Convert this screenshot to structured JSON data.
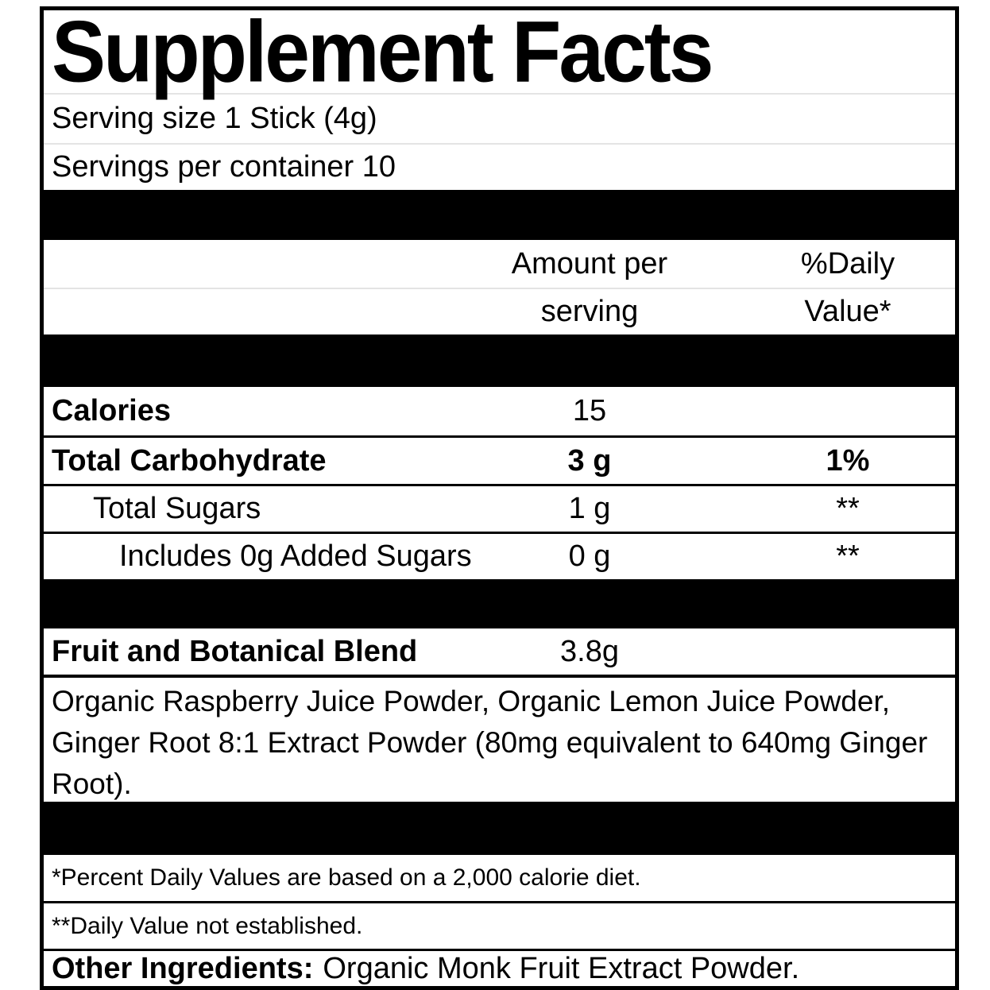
{
  "label": {
    "title": "Supplement Facts",
    "serving": {
      "size": "Serving size 1 Stick (4g)",
      "per_container": "Servings per container 10"
    },
    "header": {
      "amount_line1": "Amount per",
      "amount_line2": "serving",
      "dv_line1": "%Daily",
      "dv_line2": "Value*"
    },
    "nutrients": [
      {
        "name": "Calories",
        "amount": "15",
        "dv": ""
      },
      {
        "name": "Total Carbohydrate",
        "amount": "3 g",
        "dv": "1%"
      },
      {
        "name": "Total Sugars",
        "amount": "1 g",
        "dv": "**"
      },
      {
        "name": "Includes 0g Added Sugars",
        "amount": "0 g",
        "dv": "**"
      }
    ],
    "blend": {
      "name": "Fruit and Botanical Blend",
      "amount": "3.8g",
      "ingredients": "Organic Raspberry Juice Powder, Organic Lemon Juice Powder, Ginger Root 8:1 Extract Powder (80mg equivalent to 640mg Ginger Root)."
    },
    "footnotes": {
      "daily_value": "*Percent Daily Values are based on a 2,000 calorie diet.",
      "not_established": "**Daily Value not established."
    },
    "other_ingredients": {
      "label": "Other Ingredients:",
      "text": "Organic Monk Fruit Extract Powder."
    },
    "colors": {
      "band": "#000000",
      "divider_light": "#e4e4e4",
      "text": "#000000",
      "background": "#ffffff"
    }
  }
}
